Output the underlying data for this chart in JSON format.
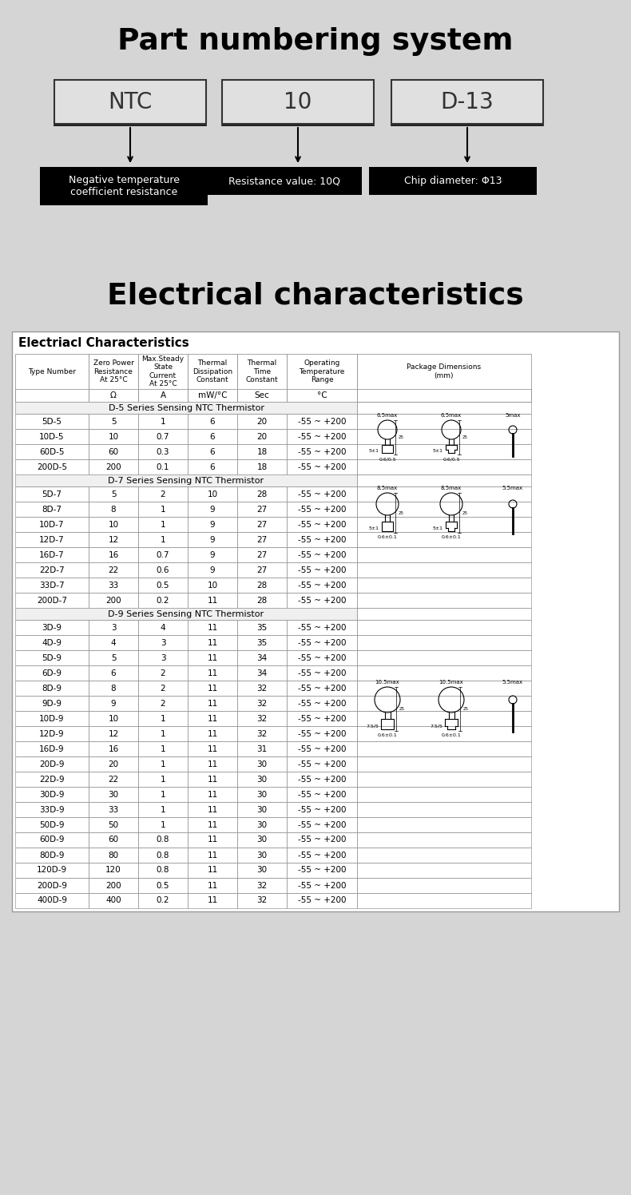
{
  "bg_color": "#d5d5d5",
  "title1": "Part numbering system",
  "title2": "Electrical characteristics",
  "table_title": "Electriacl Characteristics",
  "part_boxes": [
    "NTC",
    "10",
    "D-13"
  ],
  "part_desc": [
    "Negative temperature\ncoefficient resistance",
    "Resistance value: 10Q",
    "Chip diameter: Φ13"
  ],
  "header_row1": [
    "Type Number",
    "Zero Power\nResistance\nAt 25°C",
    "Max.Steady\nState\nCurrent\nAt 25°C",
    "Thermal\nDissipation\nConstant",
    "Thermal\nTime\nConstant",
    "Operating\nTemperature\nRange",
    "Package Dimensions\n(mm)"
  ],
  "header_row2": [
    "",
    "Ω",
    "A",
    "mW/°C",
    "Sec",
    "°C",
    ""
  ],
  "d5_rows": [
    [
      "5D-5",
      "5",
      "1",
      "6",
      "20",
      "-55 ~ +200"
    ],
    [
      "10D-5",
      "10",
      "0.7",
      "6",
      "20",
      "-55 ~ +200"
    ],
    [
      "60D-5",
      "60",
      "0.3",
      "6",
      "18",
      "-55 ~ +200"
    ],
    [
      "200D-5",
      "200",
      "0.1",
      "6",
      "18",
      "-55 ~ +200"
    ]
  ],
  "d7_rows": [
    [
      "5D-7",
      "5",
      "2",
      "10",
      "28",
      "-55 ~ +200"
    ],
    [
      "8D-7",
      "8",
      "1",
      "9",
      "27",
      "-55 ~ +200"
    ],
    [
      "10D-7",
      "10",
      "1",
      "9",
      "27",
      "-55 ~ +200"
    ],
    [
      "12D-7",
      "12",
      "1",
      "9",
      "27",
      "-55 ~ +200"
    ],
    [
      "16D-7",
      "16",
      "0.7",
      "9",
      "27",
      "-55 ~ +200"
    ],
    [
      "22D-7",
      "22",
      "0.6",
      "9",
      "27",
      "-55 ~ +200"
    ],
    [
      "33D-7",
      "33",
      "0.5",
      "10",
      "28",
      "-55 ~ +200"
    ],
    [
      "200D-7",
      "200",
      "0.2",
      "11",
      "28",
      "-55 ~ +200"
    ]
  ],
  "d9_rows": [
    [
      "3D-9",
      "3",
      "4",
      "11",
      "35",
      "-55 ~ +200"
    ],
    [
      "4D-9",
      "4",
      "3",
      "11",
      "35",
      "-55 ~ +200"
    ],
    [
      "5D-9",
      "5",
      "3",
      "11",
      "34",
      "-55 ~ +200"
    ],
    [
      "6D-9",
      "6",
      "2",
      "11",
      "34",
      "-55 ~ +200"
    ],
    [
      "8D-9",
      "8",
      "2",
      "11",
      "32",
      "-55 ~ +200"
    ],
    [
      "9D-9",
      "9",
      "2",
      "11",
      "32",
      "-55 ~ +200"
    ],
    [
      "10D-9",
      "10",
      "1",
      "11",
      "32",
      "-55 ~ +200"
    ],
    [
      "12D-9",
      "12",
      "1",
      "11",
      "32",
      "-55 ~ +200"
    ],
    [
      "16D-9",
      "16",
      "1",
      "11",
      "31",
      "-55 ~ +200"
    ],
    [
      "20D-9",
      "20",
      "1",
      "11",
      "30",
      "-55 ~ +200"
    ],
    [
      "22D-9",
      "22",
      "1",
      "11",
      "30",
      "-55 ~ +200"
    ],
    [
      "30D-9",
      "30",
      "1",
      "11",
      "30",
      "-55 ~ +200"
    ],
    [
      "33D-9",
      "33",
      "1",
      "11",
      "30",
      "-55 ~ +200"
    ],
    [
      "50D-9",
      "50",
      "1",
      "11",
      "30",
      "-55 ~ +200"
    ],
    [
      "60D-9",
      "60",
      "0.8",
      "11",
      "30",
      "-55 ~ +200"
    ],
    [
      "80D-9",
      "80",
      "0.8",
      "11",
      "30",
      "-55 ~ +200"
    ],
    [
      "120D-9",
      "120",
      "0.8",
      "11",
      "30",
      "-55 ~ +200"
    ],
    [
      "200D-9",
      "200",
      "0.5",
      "11",
      "32",
      "-55 ~ +200"
    ],
    [
      "400D-9",
      "400",
      "0.2",
      "11",
      "32",
      "-55 ~ +200"
    ]
  ]
}
